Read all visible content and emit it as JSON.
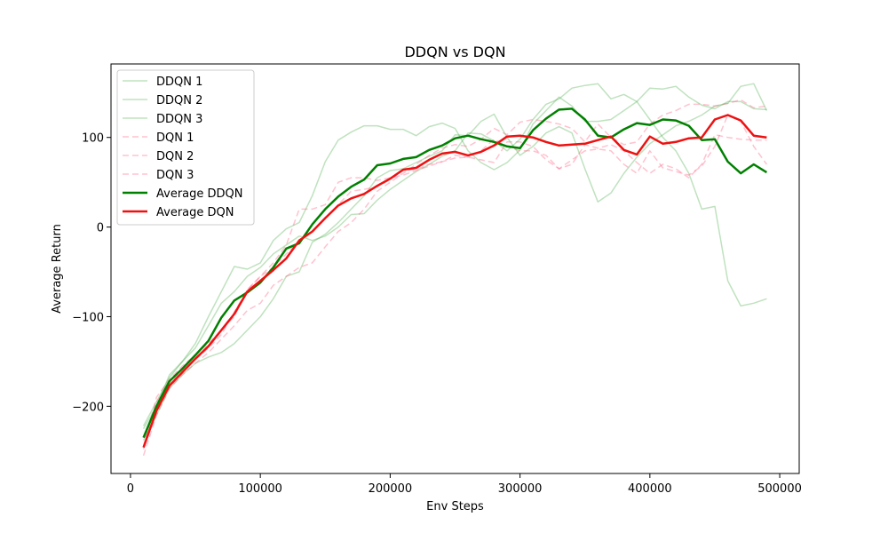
{
  "chart_data": {
    "type": "line",
    "title": "DDQN vs DQN",
    "xlabel": "Env Steps",
    "ylabel": "Average Return",
    "xlim": [
      -15000,
      515000
    ],
    "ylim": [
      -275,
      182
    ],
    "xticks": [
      0,
      100000,
      200000,
      300000,
      400000,
      500000
    ],
    "yticks": [
      -200,
      -100,
      0,
      100
    ],
    "legend_position": "upper-left",
    "x": [
      10000,
      20000,
      30000,
      40000,
      50000,
      60000,
      70000,
      80000,
      90000,
      100000,
      110000,
      120000,
      130000,
      140000,
      150000,
      160000,
      170000,
      180000,
      190000,
      200000,
      210000,
      220000,
      230000,
      240000,
      250000,
      260000,
      270000,
      280000,
      290000,
      300000,
      310000,
      320000,
      330000,
      340000,
      350000,
      360000,
      370000,
      380000,
      390000,
      400000,
      410000,
      420000,
      430000,
      440000,
      450000,
      460000,
      470000,
      480000,
      490000
    ],
    "series": [
      {
        "name": "DDQN 1",
        "color": "#2ca02c",
        "style": "solid",
        "opacity": 0.3,
        "width": 1.5,
        "values": [
          -222,
          -195,
          -168,
          -150,
          -130,
          -100,
          -72,
          -44,
          -47,
          -40,
          -15,
          -2,
          5,
          35,
          73,
          97,
          106,
          113,
          113,
          109,
          109,
          102,
          112,
          116,
          110,
          85,
          72,
          64,
          72,
          86,
          115,
          130,
          145,
          135,
          118,
          118,
          120,
          130,
          140,
          155,
          154,
          157,
          145,
          136,
          132,
          140,
          140,
          132,
          131
        ]
      },
      {
        "name": "DDQN 2",
        "color": "#2ca02c",
        "style": "solid",
        "opacity": 0.3,
        "width": 1.5,
        "values": [
          -225,
          -200,
          -165,
          -150,
          -135,
          -110,
          -85,
          -72,
          -55,
          -45,
          -30,
          -20,
          -10,
          -15,
          -10,
          0,
          14,
          15,
          30,
          42,
          52,
          62,
          70,
          79,
          85,
          105,
          104,
          96,
          85,
          98,
          120,
          137,
          143,
          155,
          158,
          160,
          143,
          148,
          140,
          120,
          100,
          85,
          60,
          20,
          23,
          -60,
          -88,
          -85,
          -80
        ]
      },
      {
        "name": "DDQN 3",
        "color": "#2ca02c",
        "style": "solid",
        "opacity": 0.3,
        "width": 1.5,
        "values": [
          -238,
          -210,
          -180,
          -165,
          -152,
          -145,
          -140,
          -130,
          -115,
          -100,
          -80,
          -55,
          -50,
          -17,
          -8,
          5,
          20,
          35,
          55,
          63,
          65,
          72,
          79,
          85,
          103,
          102,
          118,
          126,
          100,
          80,
          90,
          105,
          112,
          105,
          65,
          28,
          38,
          60,
          78,
          93,
          103,
          113,
          118,
          125,
          135,
          138,
          157,
          160,
          130
        ]
      },
      {
        "name": "DQN 1",
        "color": "#ff6688",
        "style": "dashed",
        "opacity": 0.4,
        "width": 1.5,
        "values": [
          -255,
          -210,
          -180,
          -165,
          -152,
          -140,
          -125,
          -110,
          -93,
          -85,
          -65,
          -55,
          -45,
          -40,
          -22,
          -5,
          5,
          20,
          40,
          50,
          60,
          70,
          80,
          88,
          92,
          90,
          98,
          110,
          103,
          117,
          120,
          118,
          115,
          110,
          95,
          115,
          100,
          92,
          95,
          115,
          125,
          130,
          137,
          137,
          135,
          138,
          142,
          133,
          135
        ]
      },
      {
        "name": "DQN 2",
        "color": "#ff6688",
        "style": "dashed",
        "opacity": 0.4,
        "width": 1.5,
        "values": [
          -245,
          -190,
          -170,
          -155,
          -143,
          -130,
          -115,
          -100,
          -70,
          -55,
          -40,
          -20,
          20,
          20,
          25,
          50,
          55,
          55,
          52,
          55,
          58,
          63,
          68,
          73,
          77,
          78,
          75,
          72,
          95,
          95,
          90,
          75,
          65,
          70,
          92,
          88,
          92,
          85,
          72,
          60,
          70,
          65,
          55,
          70,
          103,
          100,
          98,
          97,
          97
        ]
      },
      {
        "name": "DQN 3",
        "color": "#ff6688",
        "style": "dashed",
        "opacity": 0.4,
        "width": 1.5,
        "values": [
          -248,
          -195,
          -175,
          -160,
          -148,
          -135,
          -120,
          -95,
          -70,
          -55,
          -45,
          -30,
          -15,
          -5,
          10,
          25,
          40,
          42,
          45,
          53,
          63,
          64,
          70,
          73,
          80,
          78,
          85,
          98,
          90,
          85,
          85,
          80,
          65,
          75,
          85,
          87,
          85,
          70,
          60,
          85,
          66,
          62,
          58,
          68,
          90,
          125,
          118,
          90,
          70
        ]
      },
      {
        "name": "Average DDQN",
        "color": "#008000",
        "style": "solid",
        "opacity": 1,
        "width": 2.5,
        "values": [
          -235,
          -200,
          -172,
          -158,
          -143,
          -127,
          -101,
          -82,
          -73,
          -62,
          -45,
          -24,
          -18,
          3,
          20,
          34,
          45,
          53,
          69,
          71,
          76,
          78,
          86,
          91,
          99,
          102,
          98,
          95,
          90,
          88,
          108,
          121,
          131,
          132,
          120,
          102,
          100,
          109,
          116,
          114,
          120,
          119,
          113,
          97,
          98,
          73,
          60,
          70,
          61
        ]
      },
      {
        "name": "Average DQN",
        "color": "#ee1111",
        "style": "solid",
        "opacity": 1,
        "width": 2.5,
        "values": [
          -246,
          -205,
          -177,
          -162,
          -147,
          -133,
          -115,
          -97,
          -72,
          -60,
          -48,
          -35,
          -15,
          -5,
          10,
          24,
          32,
          37,
          46,
          54,
          64,
          66,
          75,
          82,
          84,
          80,
          84,
          91,
          101,
          102,
          100,
          95,
          91,
          92,
          93,
          97,
          101,
          86,
          81,
          101,
          93,
          95,
          99,
          100,
          120,
          125,
          119,
          102,
          100
        ]
      }
    ]
  }
}
